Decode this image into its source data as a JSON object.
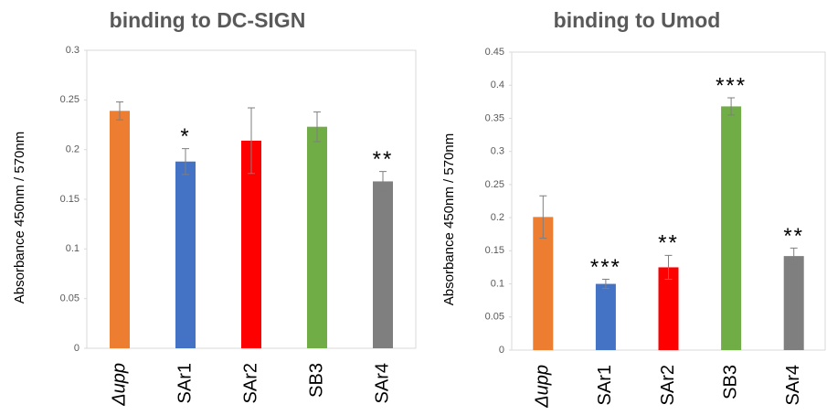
{
  "chart_data": [
    {
      "type": "bar",
      "title": "binding to DC-SIGN",
      "y_label": "Absorbance 450nm / 570nm",
      "categories": [
        "Δupp",
        "SAr1",
        "SAr2",
        "SB3",
        "SAr4"
      ],
      "values": [
        0.239,
        0.188,
        0.209,
        0.223,
        0.168
      ],
      "errors": [
        0.009,
        0.013,
        0.033,
        0.015,
        0.01
      ],
      "annotations": [
        null,
        "*",
        null,
        null,
        "**"
      ],
      "colors": [
        "#ed7d31",
        "#4472c4",
        "#ff0000",
        "#70ad47",
        "#7f7f7f"
      ],
      "ylim": [
        0,
        0.3
      ],
      "yticks": [
        0,
        0.05,
        0.1,
        0.15,
        0.2,
        0.25,
        0.3
      ]
    },
    {
      "type": "bar",
      "title": "binding to Umod",
      "y_label": "Absorbance 450nm / 570nm",
      "categories": [
        "Δupp",
        "SAr1",
        "SAr2",
        "SB3",
        "SAr4"
      ],
      "values": [
        0.201,
        0.1,
        0.125,
        0.368,
        0.142
      ],
      "errors": [
        0.032,
        0.007,
        0.018,
        0.013,
        0.012
      ],
      "annotations": [
        null,
        "***",
        "**",
        "***",
        "**"
      ],
      "colors": [
        "#ed7d31",
        "#4472c4",
        "#ff0000",
        "#70ad47",
        "#7f7f7f"
      ],
      "ylim": [
        0,
        0.45
      ],
      "yticks": [
        0,
        0.05,
        0.1,
        0.15,
        0.2,
        0.25,
        0.3,
        0.35,
        0.4,
        0.45
      ]
    }
  ]
}
